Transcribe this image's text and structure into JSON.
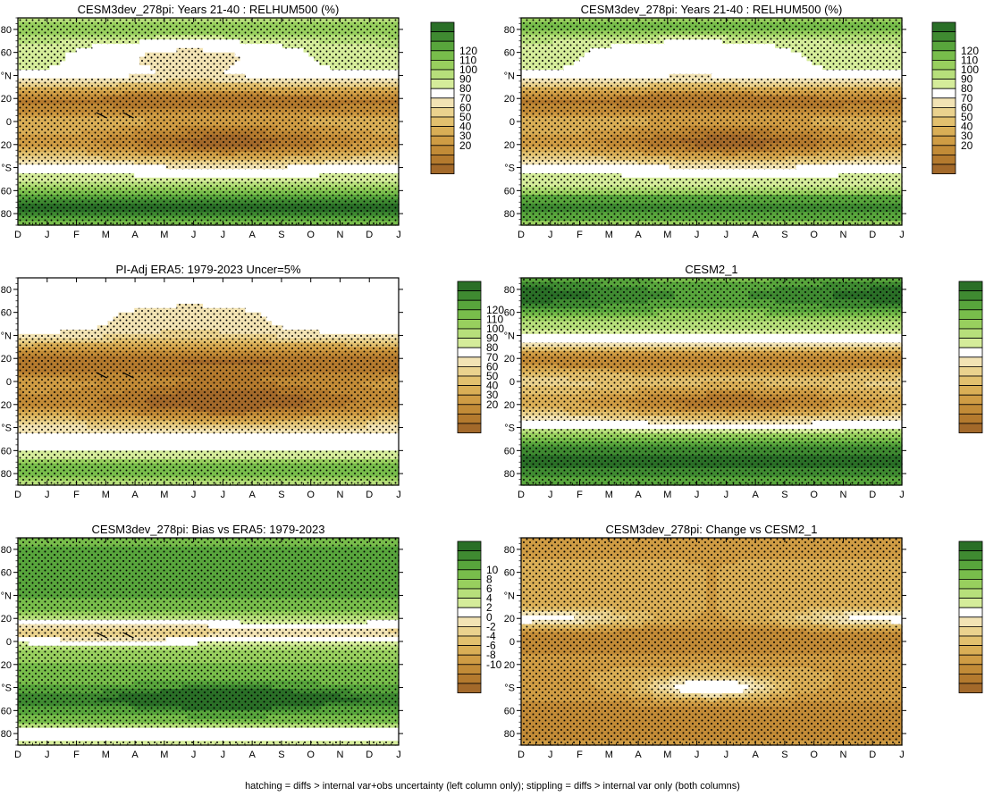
{
  "footer": "hatching = diffs > internal var+obs uncertainty (left column only); stippling = diffs > internal var only (both columns)",
  "palette": {
    "abs_colors": [
      "#a3692a",
      "#b47a2e",
      "#c28b37",
      "#cf9c44",
      "#d9ae56",
      "#e2c06e",
      "#ead28e",
      "#f2e3b4",
      "#ffffff",
      "#d5ec9a",
      "#b7df7b",
      "#98cf5e",
      "#78bd4b",
      "#58a53c",
      "#3f8a31",
      "#2a6f27"
    ],
    "diff_colors": [
      "#a3692a",
      "#b47a2e",
      "#c28b37",
      "#cf9c44",
      "#d9ae56",
      "#e2c06e",
      "#ead28e",
      "#f2e3b4",
      "#ffffff",
      "#d5ec9a",
      "#b7df7b",
      "#98cf5e",
      "#78bd4b",
      "#58a53c",
      "#3f8a31",
      "#2a6f27"
    ]
  },
  "colorbars": {
    "absolute_labels": [
      "120",
      "110",
      "100",
      "90",
      "80",
      "70",
      "60",
      "50",
      "40",
      "30",
      "20"
    ],
    "difference_labels": [
      "10",
      "8",
      "6",
      "4",
      "2",
      "0",
      "-2",
      "-4",
      "-6",
      "-8",
      "-10"
    ]
  },
  "chart_data": [
    {
      "type": "heatmap",
      "title": "CESM3dev_278pi: Years 21-40 : RELHUM500 (%)",
      "x_tick_labels": [
        "D",
        "J",
        "F",
        "M",
        "A",
        "M",
        "J",
        "J",
        "A",
        "S",
        "O",
        "N",
        "D",
        "J"
      ],
      "y_tick_labels": [
        "80",
        "60",
        "°N",
        "20",
        "0",
        "20",
        "°S",
        "60",
        "80"
      ],
      "colorbar": "absolute",
      "overlay": "stipple+hatch",
      "field": "abs_a"
    },
    {
      "type": "heatmap",
      "title": "CESM3dev_278pi: Years 21-40 : RELHUM500 (%)",
      "x_tick_labels": [
        "D",
        "J",
        "F",
        "M",
        "A",
        "M",
        "J",
        "J",
        "A",
        "S",
        "O",
        "N",
        "D",
        "J"
      ],
      "y_tick_labels": [
        "80",
        "60",
        "°N",
        "20",
        "0",
        "20",
        "°S",
        "60",
        "80"
      ],
      "colorbar": "absolute",
      "overlay": "stipple",
      "field": "abs_b"
    },
    {
      "type": "heatmap",
      "title": "PI-Adj ERA5: 1979-2023 Uncer=5%",
      "x_tick_labels": [
        "D",
        "J",
        "F",
        "M",
        "A",
        "M",
        "J",
        "J",
        "A",
        "S",
        "O",
        "N",
        "D",
        "J"
      ],
      "y_tick_labels": [
        "80",
        "60",
        "°N",
        "20",
        "0",
        "20",
        "°S",
        "60",
        "80"
      ],
      "colorbar": "absolute",
      "overlay": "stipple+hatch",
      "field": "abs_c"
    },
    {
      "type": "heatmap",
      "title": "CESM2_1",
      "x_tick_labels": [
        "D",
        "J",
        "F",
        "M",
        "A",
        "M",
        "J",
        "J",
        "A",
        "S",
        "O",
        "N",
        "D",
        "J"
      ],
      "y_tick_labels": [
        "80",
        "60",
        "°N",
        "20",
        "0",
        "20",
        "°S",
        "60",
        "80"
      ],
      "colorbar": "absolute",
      "overlay": "stipple",
      "field": "abs_d"
    },
    {
      "type": "heatmap",
      "title": "CESM3dev_278pi: Bias vs ERA5: 1979-2023",
      "x_tick_labels": [
        "D",
        "J",
        "F",
        "M",
        "A",
        "M",
        "J",
        "J",
        "A",
        "S",
        "O",
        "N",
        "D",
        "J"
      ],
      "y_tick_labels": [
        "80",
        "60",
        "°N",
        "20",
        "0",
        "20",
        "°S",
        "60",
        "80"
      ],
      "colorbar": "difference",
      "overlay": "stipple+hatch",
      "field": "bias"
    },
    {
      "type": "heatmap",
      "title": "CESM3dev_278pi: Change vs CESM2_1",
      "x_tick_labels": [
        "D",
        "J",
        "F",
        "M",
        "A",
        "M",
        "J",
        "J",
        "A",
        "S",
        "O",
        "N",
        "D",
        "J"
      ],
      "y_tick_labels": [
        "80",
        "60",
        "°N",
        "20",
        "0",
        "20",
        "°S",
        "60",
        "80"
      ],
      "colorbar": "difference",
      "overlay": "stipple",
      "field": "change"
    }
  ]
}
